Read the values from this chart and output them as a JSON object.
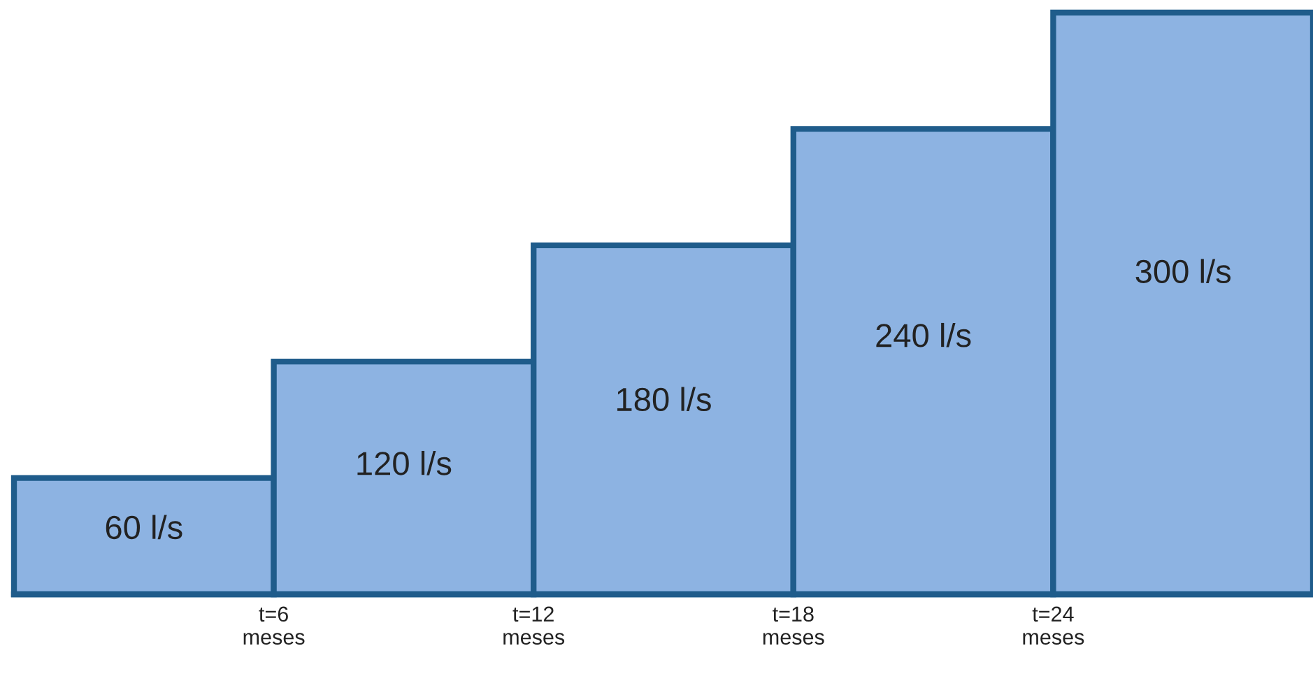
{
  "chart_data": {
    "type": "bar",
    "x": [
      3,
      9,
      15,
      21,
      27
    ],
    "values": [
      60,
      120,
      180,
      240,
      300
    ],
    "value_labels": [
      "60 l/s",
      "120 l/s",
      "180 l/s",
      "240 l/s",
      "300 l/s"
    ],
    "color": "#8db3e2",
    "xlim": [
      0,
      30
    ],
    "xticks": [
      {
        "value": 6,
        "label": "t=6\nmeses"
      },
      {
        "value": 12,
        "label": "t=12\nmeses"
      },
      {
        "value": 18,
        "label": "t=18\nmeses"
      },
      {
        "value": 24,
        "label": "t=24\nmeses"
      }
    ],
    "tick_labels": "x",
    "grid": false,
    "legend": false
  }
}
